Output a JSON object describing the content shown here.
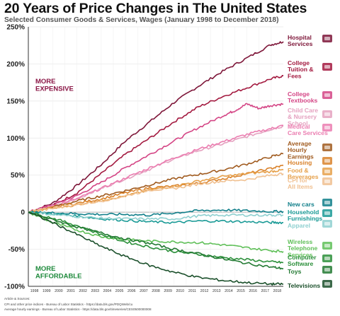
{
  "header": {
    "title": "20 Years of Price Changes in The United States",
    "subtitle": "Selected Consumer Goods & Services, Wages (January 1998 to December 2018)"
  },
  "annotations": {
    "more_expensive": [
      "MORE",
      "EXPENSIVE"
    ],
    "more_affordable": [
      "MORE",
      "AFFORDABLE"
    ]
  },
  "sources": {
    "heading": "Article & Sources:",
    "line1": "CPI and other price indices - Bureau of Labor Statistics - https://data.bls.gov/PDQWeb/cu",
    "line2": "Average hourly earnings - Bureau of Labor Statistics - https://data.bls.gov/timeseries/CES0500000008"
  },
  "colors": {
    "axis": "#333333",
    "grid": "#e6e6e6",
    "expensive_label": "#8a1545",
    "affordable_label": "#1f8a3c"
  },
  "chart_data": {
    "type": "line",
    "title": "20 Years of Price Changes in The United States",
    "subtitle": "Selected Consumer Goods & Services, Wages (January 1998 to December 2018)",
    "x_ticks": [
      "1998",
      "1999",
      "2000",
      "2001",
      "2002",
      "2003",
      "2004",
      "2005",
      "2006",
      "2007",
      "2008",
      "2009",
      "2010",
      "2011",
      "2012",
      "2013",
      "2014",
      "2015",
      "2016",
      "2017",
      "2018"
    ],
    "x_range": [
      1998,
      2019
    ],
    "ylim": [
      -100,
      250
    ],
    "y_ticks": [
      -100,
      -50,
      0,
      50,
      100,
      150,
      200,
      250
    ],
    "y_tick_labels": [
      "-100%",
      "-50%",
      "0",
      "50%",
      "100%",
      "150%",
      "200%",
      "250%"
    ],
    "grid": true,
    "series": [
      {
        "name": "Hospital Services",
        "label": [
          "Hospital",
          "Services"
        ],
        "color": "#7d1538",
        "icon": "hospital-icon",
        "points": [
          [
            1998,
            0
          ],
          [
            2000,
            12
          ],
          [
            2002,
            36
          ],
          [
            2004,
            64
          ],
          [
            2006,
            96
          ],
          [
            2008,
            122
          ],
          [
            2010,
            148
          ],
          [
            2012,
            170
          ],
          [
            2014,
            190
          ],
          [
            2016,
            208
          ],
          [
            2018,
            226
          ],
          [
            2019,
            230
          ]
        ]
      },
      {
        "name": "College Tuition & Fees",
        "label": [
          "College",
          "Tuition &",
          "Fees"
        ],
        "color": "#a3193f",
        "icon": "graduation-cap-icon",
        "points": [
          [
            1998,
            0
          ],
          [
            2000,
            9
          ],
          [
            2002,
            26
          ],
          [
            2004,
            52
          ],
          [
            2006,
            78
          ],
          [
            2008,
            100
          ],
          [
            2010,
            122
          ],
          [
            2012,
            142
          ],
          [
            2014,
            156
          ],
          [
            2016,
            168
          ],
          [
            2018,
            180
          ],
          [
            2019,
            184
          ]
        ]
      },
      {
        "name": "College Textbooks",
        "label": [
          "College",
          "Textbooks"
        ],
        "color": "#d44585",
        "icon": "books-icon",
        "points": [
          [
            1998,
            0
          ],
          [
            2000,
            10
          ],
          [
            2002,
            22
          ],
          [
            2004,
            40
          ],
          [
            2006,
            60
          ],
          [
            2008,
            78
          ],
          [
            2010,
            96
          ],
          [
            2012,
            114
          ],
          [
            2014,
            130
          ],
          [
            2015,
            137
          ],
          [
            2016,
            146
          ],
          [
            2017,
            140
          ],
          [
            2018,
            144
          ],
          [
            2019,
            146
          ]
        ]
      },
      {
        "name": "Child Care & Nursery School",
        "label": [
          "Child Care",
          "& Nursery",
          "School"
        ],
        "color": "#e5a2c0",
        "icon": "child-icon",
        "points": [
          [
            1998,
            0
          ],
          [
            2000,
            8
          ],
          [
            2002,
            18
          ],
          [
            2004,
            32
          ],
          [
            2006,
            45
          ],
          [
            2008,
            58
          ],
          [
            2010,
            72
          ],
          [
            2012,
            83
          ],
          [
            2014,
            92
          ],
          [
            2016,
            102
          ],
          [
            2018,
            112
          ],
          [
            2019,
            116
          ]
        ]
      },
      {
        "name": "Medical Care Services",
        "label": [
          "Medical",
          "Care Services"
        ],
        "color": "#eb7db0",
        "icon": "medical-icon",
        "points": [
          [
            1998,
            0
          ],
          [
            2000,
            8
          ],
          [
            2002,
            18
          ],
          [
            2004,
            32
          ],
          [
            2006,
            46
          ],
          [
            2008,
            60
          ],
          [
            2010,
            73
          ],
          [
            2012,
            85
          ],
          [
            2014,
            95
          ],
          [
            2016,
            105
          ],
          [
            2018,
            113
          ],
          [
            2019,
            117
          ]
        ]
      },
      {
        "name": "Average Hourly Earnings",
        "label": [
          "Average",
          "Hourly",
          "Earnings"
        ],
        "color": "#a05a1e",
        "icon": "money-icon",
        "points": [
          [
            1998,
            0
          ],
          [
            2000,
            7
          ],
          [
            2002,
            15
          ],
          [
            2004,
            22
          ],
          [
            2006,
            29
          ],
          [
            2008,
            37
          ],
          [
            2010,
            45
          ],
          [
            2012,
            51
          ],
          [
            2014,
            57
          ],
          [
            2016,
            65
          ],
          [
            2018,
            75
          ],
          [
            2019,
            79
          ]
        ]
      },
      {
        "name": "Housing",
        "label": [
          "Housing"
        ],
        "color": "#d9822b",
        "icon": "house-icon",
        "points": [
          [
            1998,
            0
          ],
          [
            2000,
            6
          ],
          [
            2002,
            12
          ],
          [
            2004,
            18
          ],
          [
            2006,
            26
          ],
          [
            2008,
            33
          ],
          [
            2010,
            35
          ],
          [
            2012,
            39
          ],
          [
            2014,
            45
          ],
          [
            2016,
            52
          ],
          [
            2018,
            59
          ],
          [
            2019,
            63
          ]
        ]
      },
      {
        "name": "Food & Beverages",
        "label": [
          "Food &",
          "Beverages"
        ],
        "color": "#e6a04a",
        "icon": "food-icon",
        "points": [
          [
            1998,
            0
          ],
          [
            2000,
            5
          ],
          [
            2002,
            10
          ],
          [
            2004,
            16
          ],
          [
            2006,
            22
          ],
          [
            2008,
            30
          ],
          [
            2010,
            35
          ],
          [
            2012,
            42
          ],
          [
            2014,
            48
          ],
          [
            2016,
            52
          ],
          [
            2018,
            55
          ],
          [
            2019,
            57
          ]
        ]
      },
      {
        "name": "CPI for All Items",
        "label": [
          "CPI for",
          "All Items"
        ],
        "color": "#f0c090",
        "icon": "price-tag-icon",
        "points": [
          [
            1998,
            0
          ],
          [
            2000,
            6
          ],
          [
            2002,
            10
          ],
          [
            2004,
            15
          ],
          [
            2006,
            22
          ],
          [
            2008,
            30
          ],
          [
            2010,
            32
          ],
          [
            2012,
            38
          ],
          [
            2014,
            42
          ],
          [
            2016,
            44
          ],
          [
            2018,
            50
          ],
          [
            2019,
            52
          ]
        ]
      },
      {
        "name": "New cars",
        "label": [
          "New cars"
        ],
        "color": "#117f8a",
        "icon": "car-icon",
        "points": [
          [
            1998,
            0
          ],
          [
            2000,
            -1
          ],
          [
            2002,
            -2
          ],
          [
            2004,
            -3
          ],
          [
            2006,
            -3
          ],
          [
            2008,
            -4
          ],
          [
            2010,
            -1
          ],
          [
            2012,
            2
          ],
          [
            2014,
            3
          ],
          [
            2016,
            2
          ],
          [
            2018,
            1
          ],
          [
            2019,
            1
          ]
        ]
      },
      {
        "name": "Household Furnishings",
        "label": [
          "Household",
          "Furnishings"
        ],
        "color": "#1a9a96",
        "icon": "sofa-icon",
        "points": [
          [
            1998,
            0
          ],
          [
            2000,
            -2
          ],
          [
            2002,
            -5
          ],
          [
            2004,
            -9
          ],
          [
            2006,
            -11
          ],
          [
            2008,
            -13
          ],
          [
            2010,
            -14
          ],
          [
            2012,
            -12
          ],
          [
            2014,
            -12
          ],
          [
            2016,
            -13
          ],
          [
            2018,
            -14
          ],
          [
            2019,
            -14
          ]
        ]
      },
      {
        "name": "Apparel",
        "label": [
          "Apparel"
        ],
        "color": "#8fd0d0",
        "icon": "shirt-icon",
        "points": [
          [
            1998,
            0
          ],
          [
            2000,
            -3
          ],
          [
            2002,
            -6
          ],
          [
            2004,
            -8
          ],
          [
            2006,
            -9
          ],
          [
            2008,
            -9
          ],
          [
            2010,
            -9
          ],
          [
            2012,
            -5
          ],
          [
            2014,
            -4
          ],
          [
            2016,
            -4
          ],
          [
            2018,
            -4
          ],
          [
            2019,
            -4
          ]
        ]
      },
      {
        "name": "Wireless Telephone Services",
        "label": [
          "Wireless",
          "Telephone",
          "Services"
        ],
        "color": "#5fbf58",
        "icon": "phone-icon",
        "points": [
          [
            1998,
            0
          ],
          [
            2000,
            -14
          ],
          [
            2002,
            -24
          ],
          [
            2004,
            -33
          ],
          [
            2006,
            -37
          ],
          [
            2008,
            -39
          ],
          [
            2010,
            -40
          ],
          [
            2012,
            -41
          ],
          [
            2014,
            -44
          ],
          [
            2016,
            -48
          ],
          [
            2018,
            -52
          ],
          [
            2019,
            -53
          ]
        ]
      },
      {
        "name": "Computer Software",
        "label": [
          "Computer",
          "Software"
        ],
        "color": "#2b8f3a",
        "icon": "computer-icon",
        "points": [
          [
            1998,
            0
          ],
          [
            2000,
            -8
          ],
          [
            2002,
            -18
          ],
          [
            2004,
            -30
          ],
          [
            2006,
            -40
          ],
          [
            2008,
            -47
          ],
          [
            2010,
            -53
          ],
          [
            2012,
            -57
          ],
          [
            2014,
            -61
          ],
          [
            2016,
            -64
          ],
          [
            2018,
            -67
          ],
          [
            2019,
            -68
          ]
        ]
      },
      {
        "name": "Toys",
        "label": [
          "Toys"
        ],
        "color": "#237a33",
        "icon": "toy-icon",
        "points": [
          [
            1998,
            0
          ],
          [
            2000,
            -10
          ],
          [
            2002,
            -20
          ],
          [
            2004,
            -28
          ],
          [
            2006,
            -36
          ],
          [
            2008,
            -42
          ],
          [
            2010,
            -50
          ],
          [
            2012,
            -56
          ],
          [
            2014,
            -63
          ],
          [
            2016,
            -69
          ],
          [
            2018,
            -74
          ],
          [
            2019,
            -76
          ]
        ]
      },
      {
        "name": "Televisions",
        "label": [
          "Televisions"
        ],
        "color": "#1a4f2a",
        "icon": "tv-icon",
        "points": [
          [
            1998,
            0
          ],
          [
            2000,
            -14
          ],
          [
            2002,
            -30
          ],
          [
            2004,
            -46
          ],
          [
            2006,
            -60
          ],
          [
            2008,
            -72
          ],
          [
            2010,
            -81
          ],
          [
            2012,
            -88
          ],
          [
            2014,
            -92
          ],
          [
            2016,
            -95
          ],
          [
            2018,
            -97
          ],
          [
            2019,
            -97
          ]
        ]
      }
    ]
  }
}
